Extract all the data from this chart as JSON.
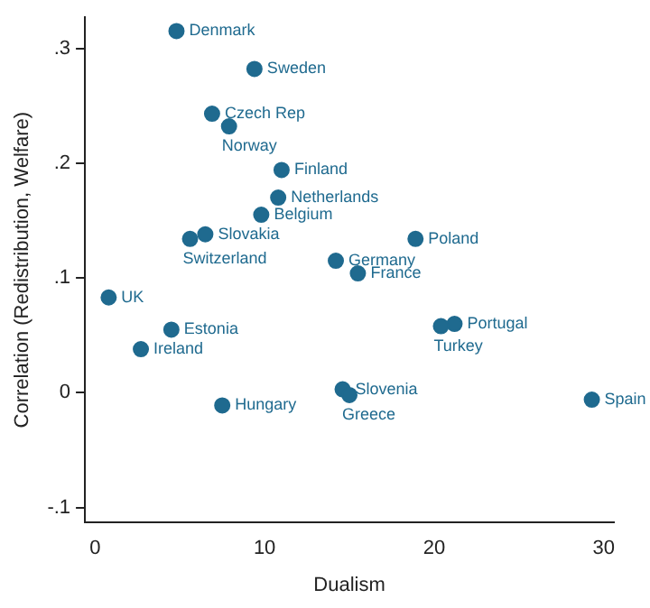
{
  "chart_data": {
    "type": "scatter",
    "xlabel": "Dualism",
    "ylabel": "Correlation (Redistribution, Welfare)",
    "x": [
      4.8,
      9.4,
      6.9,
      7.9,
      11.0,
      10.8,
      9.8,
      6.5,
      5.6,
      14.2,
      15.5,
      18.9,
      0.8,
      4.5,
      2.7,
      7.5,
      14.6,
      15.0,
      21.2,
      20.4,
      29.3
    ],
    "values": [
      0.315,
      0.282,
      0.243,
      0.232,
      0.194,
      0.17,
      0.155,
      0.138,
      0.134,
      0.115,
      0.104,
      0.134,
      0.083,
      0.055,
      0.038,
      -0.011,
      0.003,
      -0.002,
      0.06,
      0.058,
      -0.006
    ],
    "color": "#1f6a8f",
    "marker": "circle",
    "xlim": [
      -0.6,
      30.6
    ],
    "xticks": [
      0,
      10,
      20,
      30
    ],
    "ylim": [
      -0.113,
      0.327
    ],
    "yticks": [
      {
        "value": -0.1,
        "label": "-.1"
      },
      0,
      {
        "value": 0.1,
        "label": ".1"
      },
      {
        "value": 0.2,
        "label": ".2"
      },
      {
        "value": 0.3,
        "label": ".3"
      }
    ],
    "annotations": [
      {
        "text": "Denmark",
        "x": 4.8,
        "y": 0.315
      },
      {
        "text": "Sweden",
        "x": 9.4,
        "y": 0.282
      },
      {
        "text": "Czech Rep",
        "x": 6.9,
        "y": 0.243
      },
      {
        "text": "Norway",
        "x": 7.9,
        "y": 0.232
      },
      {
        "text": "Finland",
        "x": 11.0,
        "y": 0.194
      },
      {
        "text": "Netherlands",
        "x": 10.8,
        "y": 0.17
      },
      {
        "text": "Belgium",
        "x": 9.8,
        "y": 0.155
      },
      {
        "text": "Slovakia",
        "x": 6.5,
        "y": 0.138
      },
      {
        "text": "Switzerland",
        "x": 5.6,
        "y": 0.134
      },
      {
        "text": "Germany",
        "x": 14.2,
        "y": 0.115
      },
      {
        "text": "France",
        "x": 15.5,
        "y": 0.104
      },
      {
        "text": "Poland",
        "x": 18.9,
        "y": 0.134
      },
      {
        "text": "UK",
        "x": 0.8,
        "y": 0.083
      },
      {
        "text": "Estonia",
        "x": 4.5,
        "y": 0.055
      },
      {
        "text": "Ireland",
        "x": 2.7,
        "y": 0.038
      },
      {
        "text": "Hungary",
        "x": 7.5,
        "y": -0.011
      },
      {
        "text": "Slovenia",
        "x": 14.6,
        "y": 0.003
      },
      {
        "text": "Greece",
        "x": 15.0,
        "y": -0.002
      },
      {
        "text": "Portugal",
        "x": 21.2,
        "y": 0.06
      },
      {
        "text": "Turkey",
        "x": 20.4,
        "y": 0.058
      },
      {
        "text": "Spain",
        "x": 29.3,
        "y": -0.006
      }
    ]
  }
}
